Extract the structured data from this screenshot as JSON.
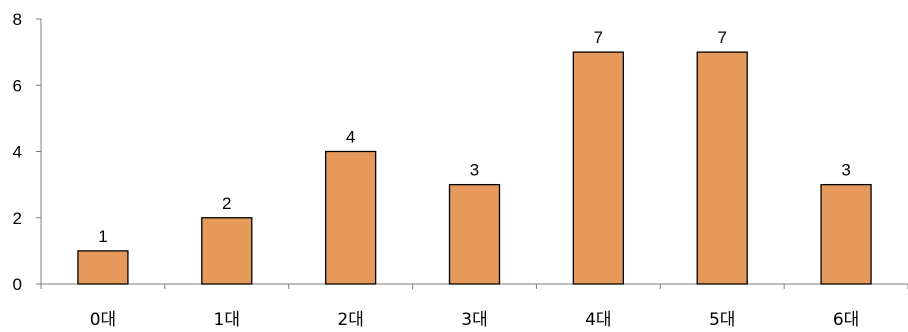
{
  "chart_data": {
    "type": "bar",
    "categories": [
      "0대",
      "1대",
      "2대",
      "3대",
      "4대",
      "5대",
      "6대"
    ],
    "values": [
      1,
      2,
      4,
      3,
      7,
      7,
      3
    ],
    "ylim": [
      0,
      8
    ],
    "yticks": [
      0,
      2,
      4,
      6,
      8
    ],
    "grid": false,
    "data_labels": true
  },
  "colors": {
    "bar_fill": "#E59A5B",
    "bar_stroke": "#000000",
    "axis": "#7f7f7f",
    "text": "#000000"
  }
}
